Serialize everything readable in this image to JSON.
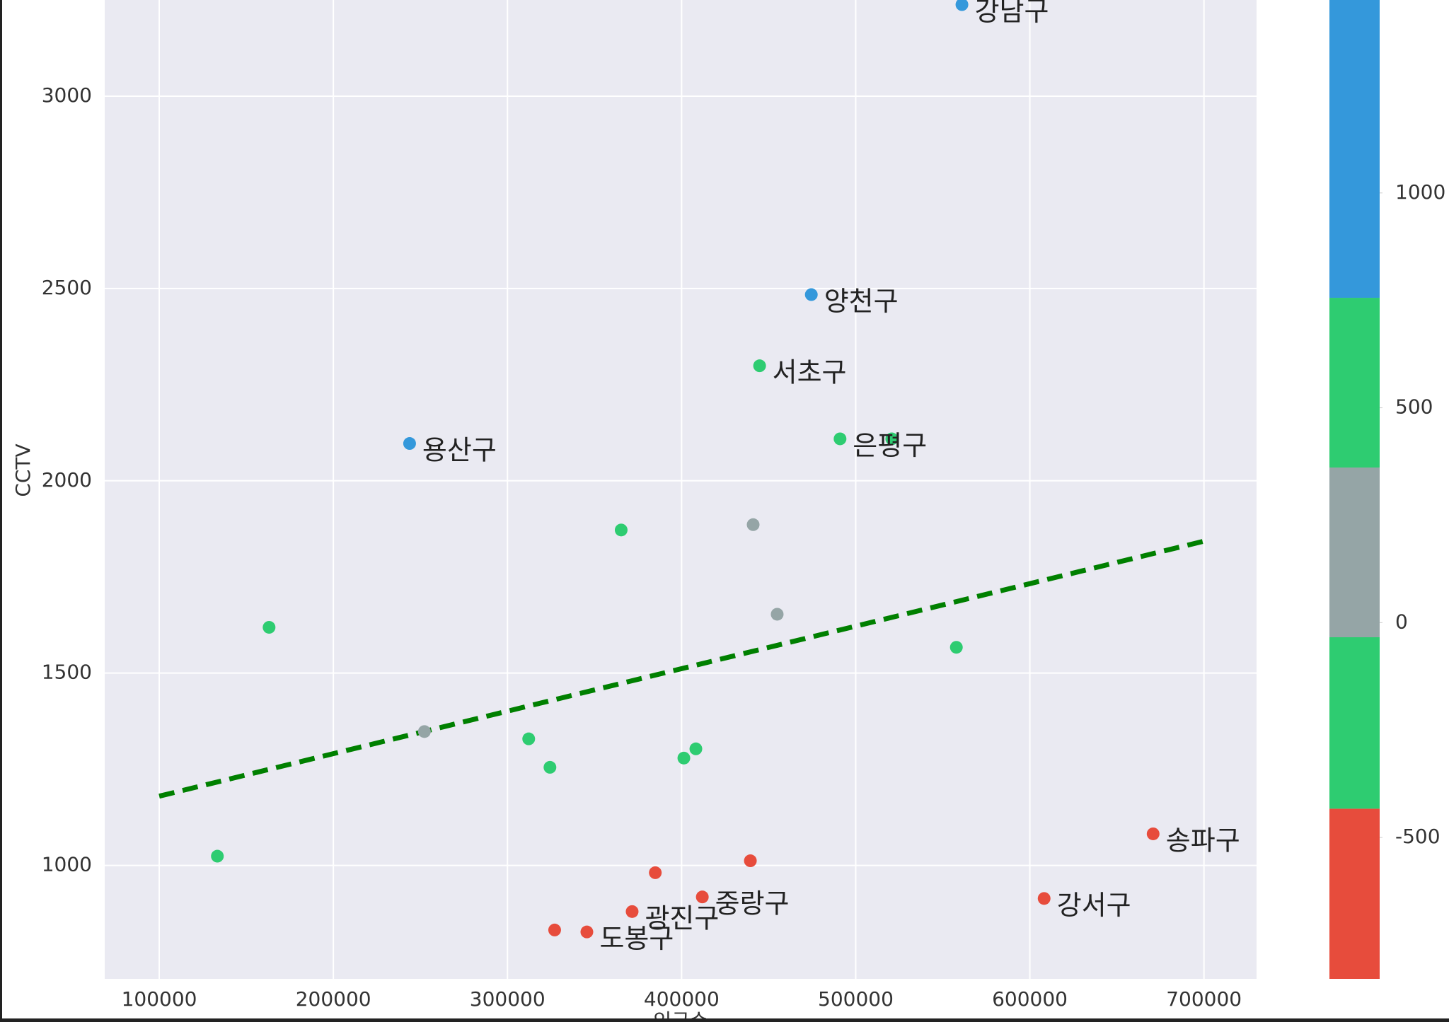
{
  "chart_data": {
    "type": "scatter",
    "xlabel": "인구수",
    "ylabel": "CCTV",
    "x": [
      561000,
      474500,
      444800,
      491000,
      520700,
      243800,
      365300,
      441100,
      454900,
      163100,
      557800,
      252300,
      312200,
      324400,
      401300,
      408200,
      133400,
      670800,
      608200,
      439500,
      384900,
      411900,
      371600,
      327100,
      345600
    ],
    "values": [
      3238,
      2484,
      2299,
      2109,
      2109,
      2097,
      1872,
      1886,
      1653,
      1619,
      1567,
      1348,
      1329,
      1255,
      1279,
      1303,
      1024,
      1082,
      914,
      1012,
      981,
      918,
      880,
      832,
      827
    ],
    "colors": [
      "#3498db",
      "#3498db",
      "#2ecc71",
      "#2ecc71",
      "#2ecc71",
      "#3498db",
      "#2ecc71",
      "#95a5a6",
      "#95a5a6",
      "#2ecc71",
      "#2ecc71",
      "#95a5a6",
      "#2ecc71",
      "#2ecc71",
      "#2ecc71",
      "#2ecc71",
      "#2ecc71",
      "#e74c3c",
      "#e74c3c",
      "#e74c3c",
      "#e74c3c",
      "#e74c3c",
      "#e74c3c",
      "#e74c3c",
      "#e74c3c"
    ],
    "labels": [
      "강남구",
      "양천구",
      "서초구",
      "은평구",
      null,
      "용산구",
      null,
      null,
      null,
      null,
      null,
      null,
      null,
      null,
      null,
      null,
      null,
      "송파구",
      "강서구",
      null,
      null,
      "중랑구",
      "광진구",
      null,
      "도봉구"
    ],
    "trend": {
      "x": [
        100000,
        700000
      ],
      "y": [
        1180,
        1843
      ],
      "color": "#008000"
    },
    "xlim": [
      68700,
      730200
    ],
    "ylim": [
      705,
      3250
    ],
    "xticks": [
      100000,
      200000,
      300000,
      400000,
      500000,
      600000,
      700000
    ],
    "yticks": [
      1000,
      1500,
      2000,
      2500,
      3000
    ],
    "grid": true,
    "colorbar": {
      "lim": [
        -829,
        1449
      ],
      "bounds": [
        -829,
        -433,
        -34,
        361,
        756,
        1449
      ],
      "colors": [
        "#e74c3c",
        "#2ecc71",
        "#95a5a6",
        "#2ecc71",
        "#3498db"
      ],
      "ticks": [
        -500,
        0,
        500,
        1000
      ]
    }
  }
}
